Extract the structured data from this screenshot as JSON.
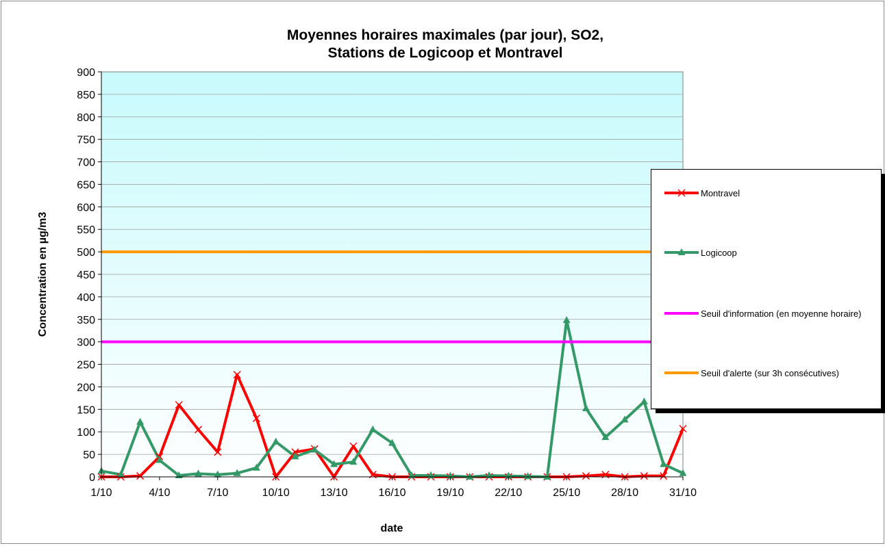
{
  "chart_data": {
    "type": "line",
    "title": [
      "Moyennes horaires maximales (par jour), SO2,",
      "Stations de Logicoop et Montravel"
    ],
    "x_label": "date",
    "y_label": "Concentration en µg/m3",
    "categories": [
      "1/10",
      null,
      null,
      "4/10",
      null,
      null,
      "7/10",
      null,
      null,
      "10/10",
      null,
      null,
      "13/10",
      null,
      null,
      "16/10",
      null,
      null,
      "19/10",
      null,
      null,
      "22/10",
      null,
      null,
      "25/10",
      null,
      null,
      "28/10",
      null,
      null,
      "31/10"
    ],
    "ylim": [
      0,
      900
    ],
    "yticks": [
      0,
      50,
      100,
      150,
      200,
      250,
      300,
      350,
      400,
      450,
      500,
      550,
      600,
      650,
      700,
      750,
      800,
      850,
      900
    ],
    "grid": true,
    "legend": "right",
    "series": [
      {
        "name": "Montravel",
        "color": "#ff0000",
        "marker": "x",
        "values": [
          0,
          0,
          2,
          45,
          160,
          105,
          55,
          227,
          130,
          0,
          55,
          62,
          0,
          68,
          5,
          0,
          0,
          0,
          0,
          0,
          0,
          0,
          0,
          0,
          0,
          2,
          5,
          0,
          2,
          2,
          107
        ]
      },
      {
        "name": "Logicoop",
        "color": "#339966",
        "marker": "triangle",
        "values": [
          13,
          5,
          122,
          37,
          3,
          7,
          5,
          8,
          20,
          78,
          45,
          60,
          28,
          33,
          105,
          75,
          3,
          3,
          2,
          0,
          3,
          2,
          1,
          0,
          348,
          152,
          88,
          127,
          167,
          28,
          8
        ]
      },
      {
        "name": "Seuil d'information (en moyenne horaire)",
        "color": "#ff00ff",
        "marker": "none",
        "values": [
          300,
          300,
          300,
          300,
          300,
          300,
          300,
          300,
          300,
          300,
          300,
          300,
          300,
          300,
          300,
          300,
          300,
          300,
          300,
          300,
          300,
          300,
          300,
          300,
          300,
          300,
          300,
          300,
          300,
          300,
          300
        ]
      },
      {
        "name": "Seuil d'alerte (sur 3h consécutives)",
        "color": "#ff9900",
        "marker": "none",
        "values": [
          500,
          500,
          500,
          500,
          500,
          500,
          500,
          500,
          500,
          500,
          500,
          500,
          500,
          500,
          500,
          500,
          500,
          500,
          500,
          500,
          500,
          500,
          500,
          500,
          500,
          500,
          500,
          500,
          500,
          500,
          500
        ]
      }
    ]
  }
}
